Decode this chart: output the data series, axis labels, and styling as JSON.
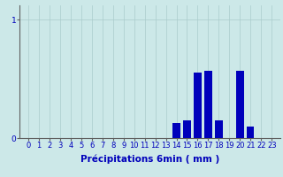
{
  "categories": [
    0,
    1,
    2,
    3,
    4,
    5,
    6,
    7,
    8,
    9,
    10,
    11,
    12,
    13,
    14,
    15,
    16,
    17,
    18,
    19,
    20,
    21,
    22,
    23
  ],
  "values": [
    0,
    0,
    0,
    0,
    0,
    0,
    0,
    0,
    0,
    0,
    0,
    0,
    0,
    0,
    0.13,
    0.15,
    0.55,
    0.57,
    0.15,
    0,
    0.57,
    0.1,
    0,
    0
  ],
  "bar_color": "#0000bb",
  "background_color": "#cce8e8",
  "grid_color": "#aacccc",
  "axis_color": "#606060",
  "text_color": "#0000bb",
  "xlabel": "Précipitations 6min ( mm )",
  "ylim": [
    0,
    1.12
  ],
  "yticks": [
    0,
    1
  ],
  "ytick_labels": [
    "0",
    "1"
  ],
  "bar_width": 0.7,
  "xlabel_fontsize": 7.5,
  "tick_fontsize": 6.0
}
